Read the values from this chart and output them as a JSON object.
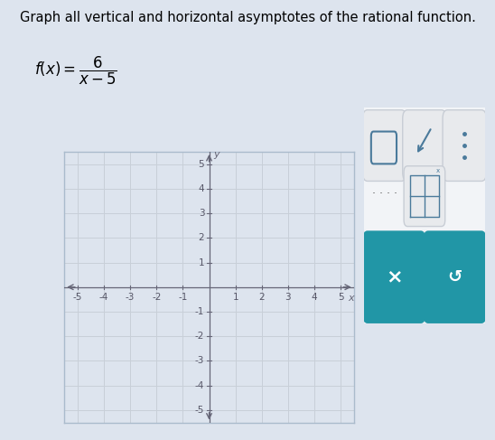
{
  "title_text": "Graph all vertical and horizontal asymptotes of the rational function.",
  "xlim": [
    -5.5,
    5.5
  ],
  "ylim": [
    -5.5,
    5.5
  ],
  "grid_color": "#c8cfd8",
  "axis_color": "#666677",
  "background_color": "#dde4ee",
  "plot_bg_color": "#dde4ee",
  "figure_bg_color": "#dde4ee",
  "border_color": "#aabbcc",
  "tick_label_color": "#555566",
  "title_fontsize": 10.5,
  "tick_fontsize": 7.5,
  "teal_color": "#2196a6",
  "panel_bg": "#f0f2f5",
  "panel_border": "#d0d5dd",
  "btn_bg": "#e8eaed",
  "icon_color": "#4a7a9b"
}
